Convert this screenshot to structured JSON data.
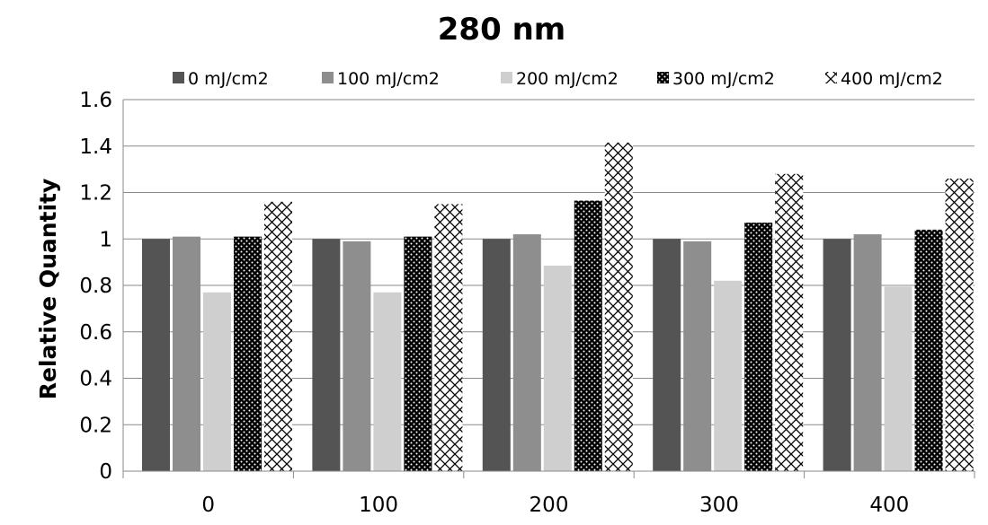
{
  "chart_data": {
    "type": "bar",
    "title": "280 nm",
    "xlabel": "",
    "ylabel": "Relative Quantity",
    "ylim": [
      0,
      1.6
    ],
    "yticks": [
      "0",
      "0.2",
      "0.4",
      "0.6",
      "0.8",
      "1",
      "1.2",
      "1.4",
      "1.6"
    ],
    "grid": true,
    "legend_position": "top",
    "categories": [
      "0",
      "100",
      "200",
      "300",
      "400"
    ],
    "series": [
      {
        "name": "0 mJ/cm2",
        "pattern": "solid-dark",
        "color": "#545454",
        "values": [
          1.0,
          1.0,
          1.0,
          1.0,
          1.0
        ]
      },
      {
        "name": "100 mJ/cm2",
        "pattern": "solid-mid",
        "color": "#8e8e8e",
        "values": [
          1.01,
          0.99,
          1.02,
          0.99,
          1.02
        ]
      },
      {
        "name": "200 mJ/cm2",
        "pattern": "solid-light",
        "color": "#cfcfcf",
        "values": [
          0.77,
          0.77,
          0.885,
          0.82,
          0.795
        ]
      },
      {
        "name": "300 mJ/cm2",
        "pattern": "black-with-white-dots",
        "color": "#000000",
        "values": [
          1.01,
          1.01,
          1.165,
          1.07,
          1.04
        ]
      },
      {
        "name": "400 mJ/cm2",
        "pattern": "crosshatch",
        "color": "#ffffff",
        "values": [
          1.16,
          1.15,
          1.415,
          1.28,
          1.26
        ]
      }
    ]
  }
}
